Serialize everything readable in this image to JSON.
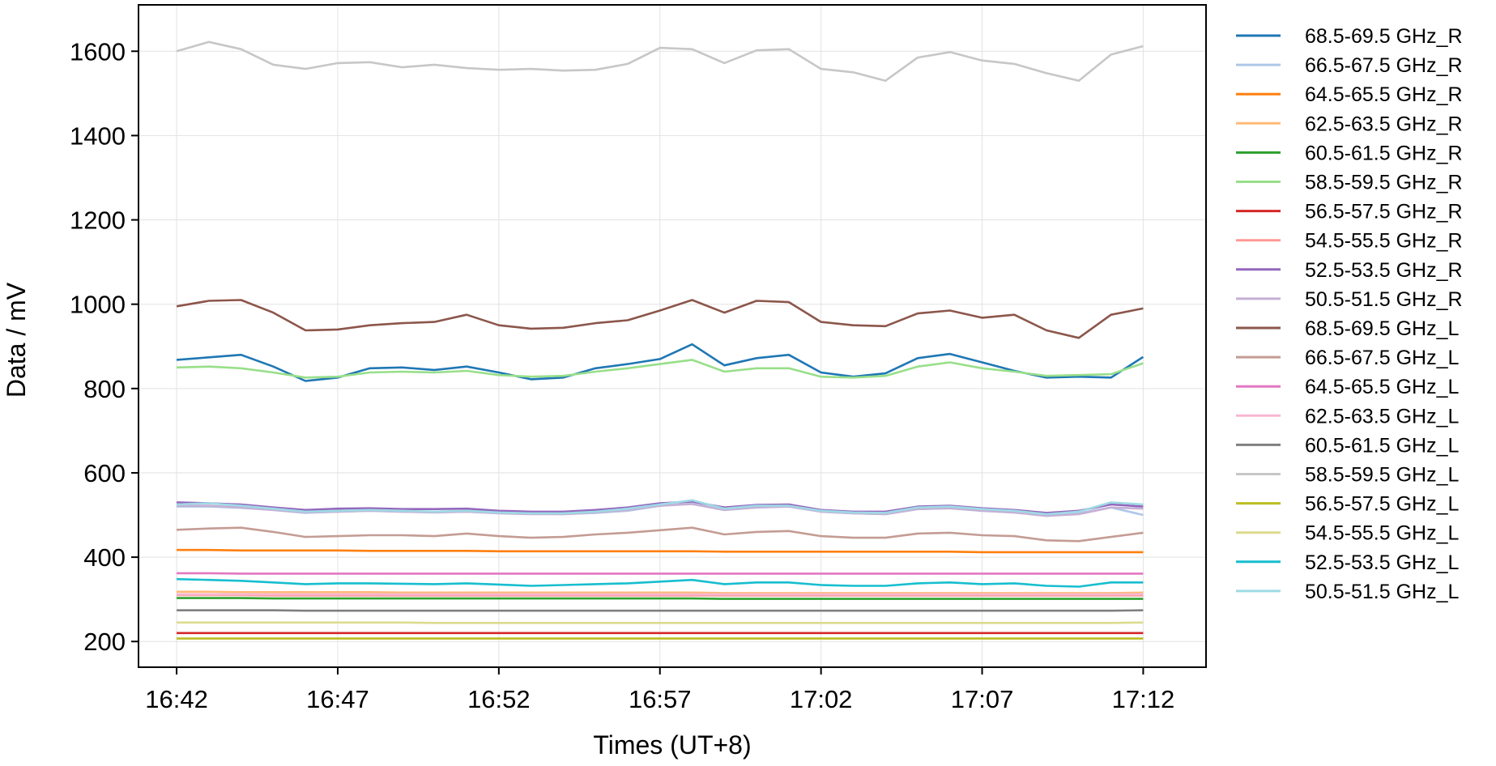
{
  "chart_data": {
    "type": "line",
    "title": "",
    "xlabel": "Times (UT+8)",
    "ylabel": "Data / mV",
    "xlim": [
      "16:40:49",
      "17:13:57"
    ],
    "ylim": [
      139,
      1710
    ],
    "grid": true,
    "legend_position": "outside-right",
    "x_ticks": [
      "16:42",
      "16:47",
      "16:52",
      "16:57",
      "17:02",
      "17:07",
      "17:12"
    ],
    "y_ticks": [
      200,
      400,
      600,
      800,
      1000,
      1200,
      1400,
      1600
    ],
    "x_time_points": [
      "16:42",
      "16:43",
      "16:44",
      "16:45",
      "16:46",
      "16:47",
      "16:48",
      "16:49",
      "16:50",
      "16:51",
      "16:52",
      "16:53",
      "16:54",
      "16:55",
      "16:56",
      "16:57",
      "16:58",
      "16:59",
      "17:00",
      "17:01",
      "17:02",
      "17:03",
      "17:04",
      "17:05",
      "17:06",
      "17:07",
      "17:08",
      "17:09",
      "17:10",
      "17:11",
      "17:12"
    ],
    "series": [
      {
        "name": "68.5-69.5 GHz_R",
        "color": "#1f77b4",
        "values": [
          868,
          874,
          880,
          852,
          818,
          826,
          848,
          850,
          844,
          852,
          838,
          822,
          826,
          848,
          858,
          870,
          905,
          855,
          872,
          880,
          838,
          828,
          836,
          872,
          882,
          862,
          842,
          826,
          828,
          826,
          875
        ]
      },
      {
        "name": "66.5-67.5 GHz_R",
        "color": "#aec7e8",
        "values": [
          520,
          520,
          517,
          512,
          505,
          508,
          510,
          508,
          507,
          508,
          505,
          503,
          502,
          505,
          510,
          522,
          527,
          512,
          518,
          520,
          508,
          504,
          502,
          514,
          516,
          510,
          506,
          498,
          504,
          518,
          500
        ]
      },
      {
        "name": "64.5-65.5 GHz_R",
        "color": "#ff7f0e",
        "values": [
          417,
          417,
          416,
          416,
          416,
          416,
          415,
          415,
          415,
          415,
          414,
          414,
          414,
          414,
          414,
          414,
          414,
          413,
          413,
          413,
          413,
          413,
          413,
          413,
          413,
          412,
          412,
          412,
          412,
          412,
          412
        ]
      },
      {
        "name": "62.5-63.5 GHz_R",
        "color": "#ffbb78",
        "values": [
          318,
          318,
          317,
          317,
          317,
          317,
          317,
          316,
          316,
          316,
          316,
          316,
          316,
          316,
          316,
          316,
          316,
          315,
          315,
          315,
          315,
          315,
          315,
          315,
          315,
          315,
          315,
          315,
          315,
          315,
          316
        ]
      },
      {
        "name": "60.5-61.5 GHz_R",
        "color": "#2ca02c",
        "values": [
          303,
          303,
          303,
          302,
          302,
          302,
          302,
          302,
          302,
          302,
          302,
          302,
          302,
          302,
          302,
          302,
          302,
          301,
          301,
          301,
          301,
          301,
          301,
          301,
          301,
          301,
          301,
          301,
          301,
          301,
          301
        ]
      },
      {
        "name": "58.5-59.5 GHz_R",
        "color": "#98df8a",
        "values": [
          850,
          852,
          848,
          838,
          826,
          828,
          838,
          840,
          838,
          842,
          832,
          828,
          830,
          840,
          848,
          858,
          868,
          840,
          848,
          848,
          828,
          826,
          830,
          852,
          862,
          848,
          840,
          830,
          832,
          834,
          860
        ]
      },
      {
        "name": "56.5-57.5 GHz_R",
        "color": "#d62728",
        "values": [
          220,
          220,
          220,
          220,
          220,
          220,
          220,
          220,
          220,
          220,
          220,
          220,
          220,
          220,
          220,
          220,
          220,
          220,
          220,
          220,
          220,
          220,
          220,
          220,
          220,
          220,
          220,
          220,
          220,
          220,
          220
        ]
      },
      {
        "name": "54.5-55.5 GHz_R",
        "color": "#ff9896",
        "values": [
          310,
          310,
          310,
          309,
          309,
          309,
          309,
          309,
          309,
          309,
          309,
          309,
          309,
          309,
          309,
          309,
          309,
          309,
          309,
          309,
          309,
          309,
          309,
          309,
          309,
          309,
          309,
          309,
          309,
          309,
          309
        ]
      },
      {
        "name": "52.5-53.5 GHz_R",
        "color": "#9467bd",
        "values": [
          530,
          528,
          525,
          518,
          512,
          515,
          516,
          514,
          514,
          515,
          510,
          508,
          508,
          512,
          518,
          528,
          532,
          518,
          524,
          525,
          512,
          508,
          508,
          520,
          522,
          516,
          512,
          505,
          510,
          525,
          520
        ]
      },
      {
        "name": "50.5-51.5 GHz_R",
        "color": "#c5b0d5",
        "values": [
          522,
          522,
          518,
          512,
          506,
          508,
          510,
          508,
          506,
          508,
          504,
          502,
          502,
          506,
          512,
          522,
          526,
          512,
          518,
          520,
          508,
          504,
          502,
          514,
          516,
          510,
          506,
          498,
          502,
          518,
          515
        ]
      },
      {
        "name": "68.5-69.5 GHz_L",
        "color": "#8c564b",
        "values": [
          995,
          1008,
          1010,
          980,
          938,
          940,
          950,
          955,
          958,
          975,
          950,
          942,
          944,
          955,
          962,
          985,
          1010,
          980,
          1008,
          1005,
          958,
          950,
          948,
          978,
          985,
          968,
          975,
          938,
          920,
          975,
          990
        ]
      },
      {
        "name": "66.5-67.5 GHz_L",
        "color": "#c49c94",
        "values": [
          465,
          468,
          470,
          460,
          448,
          450,
          452,
          452,
          450,
          456,
          450,
          446,
          448,
          454,
          458,
          464,
          470,
          454,
          460,
          462,
          450,
          446,
          446,
          456,
          458,
          452,
          450,
          440,
          438,
          448,
          458
        ]
      },
      {
        "name": "64.5-65.5 GHz_L",
        "color": "#e377c2",
        "values": [
          362,
          362,
          361,
          361,
          361,
          361,
          361,
          361,
          361,
          361,
          361,
          361,
          361,
          361,
          361,
          361,
          361,
          361,
          361,
          361,
          361,
          361,
          361,
          361,
          361,
          361,
          361,
          361,
          361,
          361,
          361
        ]
      },
      {
        "name": "62.5-63.5 GHz_L",
        "color": "#f7b6d2",
        "values": [
          312,
          312,
          312,
          312,
          312,
          312,
          312,
          312,
          312,
          312,
          312,
          312,
          312,
          312,
          312,
          312,
          312,
          312,
          312,
          312,
          312,
          312,
          312,
          312,
          312,
          312,
          312,
          312,
          312,
          312,
          312
        ]
      },
      {
        "name": "60.5-61.5 GHz_L",
        "color": "#7f7f7f",
        "values": [
          274,
          274,
          274,
          274,
          273,
          273,
          273,
          273,
          273,
          273,
          273,
          273,
          273,
          273,
          273,
          273,
          273,
          273,
          273,
          273,
          273,
          273,
          273,
          273,
          273,
          273,
          273,
          273,
          273,
          273,
          274
        ]
      },
      {
        "name": "58.5-59.5 GHz_L",
        "color": "#c7c7c7",
        "values": [
          1600,
          1622,
          1605,
          1568,
          1558,
          1572,
          1574,
          1562,
          1568,
          1560,
          1556,
          1558,
          1554,
          1556,
          1570,
          1608,
          1605,
          1572,
          1602,
          1605,
          1558,
          1550,
          1530,
          1585,
          1598,
          1578,
          1570,
          1548,
          1530,
          1592,
          1612
        ]
      },
      {
        "name": "56.5-57.5 GHz_L",
        "color": "#bcbd22",
        "values": [
          207,
          207,
          207,
          207,
          207,
          207,
          207,
          207,
          207,
          207,
          207,
          207,
          207,
          207,
          207,
          207,
          207,
          207,
          207,
          207,
          207,
          207,
          207,
          207,
          207,
          207,
          207,
          207,
          207,
          207,
          207
        ]
      },
      {
        "name": "54.5-55.5 GHz_L",
        "color": "#dbdb8d",
        "values": [
          245,
          245,
          245,
          245,
          245,
          245,
          245,
          245,
          244,
          244,
          244,
          244,
          244,
          244,
          244,
          244,
          244,
          244,
          244,
          244,
          244,
          244,
          244,
          244,
          244,
          244,
          244,
          244,
          244,
          244,
          245
        ]
      },
      {
        "name": "52.5-53.5 GHz_L",
        "color": "#17becf",
        "values": [
          348,
          346,
          344,
          340,
          336,
          338,
          338,
          337,
          336,
          338,
          335,
          332,
          334,
          336,
          338,
          342,
          346,
          336,
          340,
          340,
          334,
          332,
          332,
          338,
          340,
          336,
          338,
          332,
          330,
          340,
          340
        ]
      },
      {
        "name": "50.5-51.5 GHz_L",
        "color": "#9edae5",
        "values": [
          525,
          528,
          522,
          515,
          508,
          510,
          512,
          510,
          508,
          510,
          506,
          504,
          504,
          508,
          515,
          525,
          535,
          515,
          522,
          522,
          510,
          506,
          505,
          518,
          520,
          514,
          510,
          502,
          508,
          530,
          525
        ]
      }
    ]
  }
}
